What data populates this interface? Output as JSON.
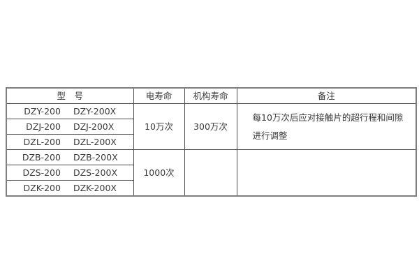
{
  "page": {
    "background": "#ffffff"
  },
  "table": {
    "headers": {
      "model": "型　号",
      "electrical_life": "电寿命",
      "mechanical_life": "机构寿命",
      "remarks": "备注"
    },
    "groups": [
      {
        "rows": [
          [
            "DZY-200",
            "DZY-200X"
          ],
          [
            "DZJ-200",
            "DZJ-200X"
          ],
          [
            "DZL-200",
            "DZL-200X"
          ]
        ],
        "electrical_life": "10万次",
        "mechanical_life": "300万次",
        "remarks_lines": [
          "每10万次后应对接触片的超行程和间隙",
          "进行调整"
        ]
      },
      {
        "rows": [
          [
            "DZB-200",
            "DZB-200X"
          ],
          [
            "DZS-200",
            "DZS-200X"
          ],
          [
            "DZK-200",
            "DZK-200X"
          ]
        ],
        "electrical_life": "1000次",
        "mechanical_life": "",
        "remarks_lines": []
      }
    ],
    "colors": {
      "border_outer": "#7e7e7e",
      "border_inner": "#4c4c4c",
      "text": "#3a3a3a",
      "background": "#ffffff"
    }
  }
}
